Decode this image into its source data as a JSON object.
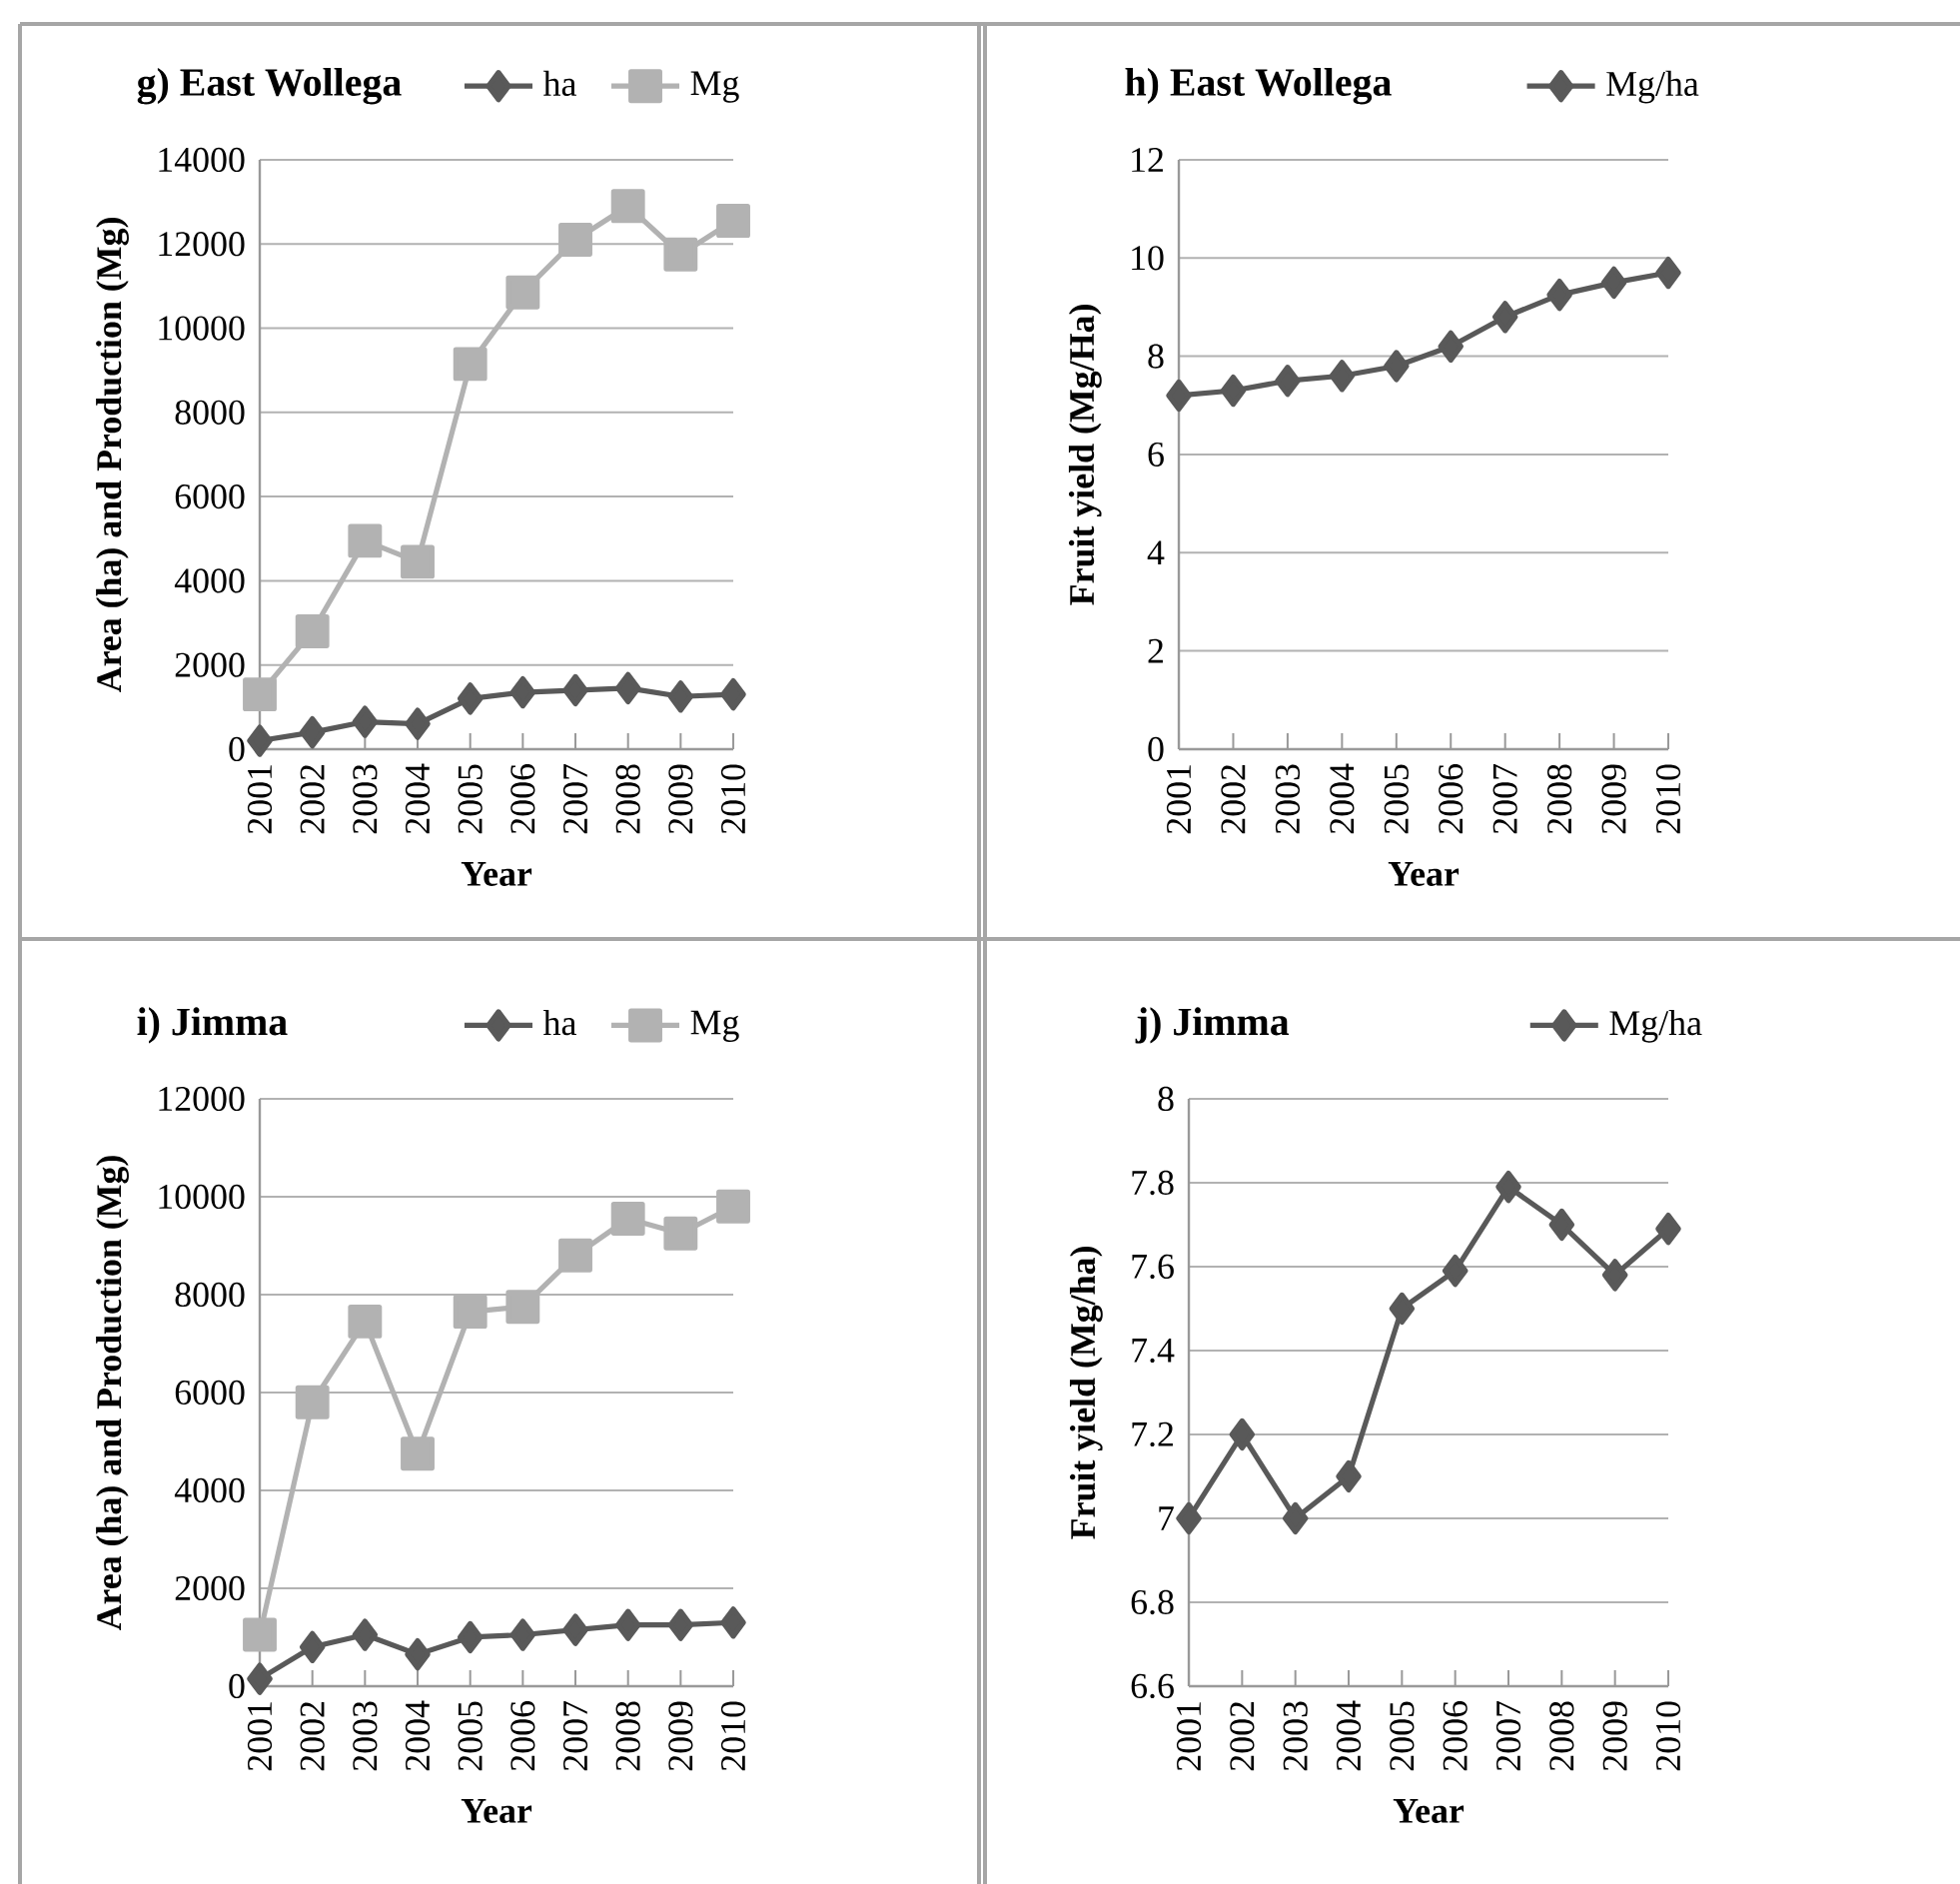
{
  "chart_data": [
    {
      "type": "line",
      "title": "g) East Wollega",
      "xlabel": "Year",
      "ylabel": "Area (ha) and Production (Mg)",
      "categories": [
        "2001",
        "2002",
        "2003",
        "2004",
        "2005",
        "2006",
        "2007",
        "2008",
        "2009",
        "2010"
      ],
      "ylim": [
        0,
        14000
      ],
      "yticks": [
        0,
        2000,
        4000,
        6000,
        8000,
        10000,
        12000,
        14000
      ],
      "grid": "y",
      "legend": "top",
      "series": [
        {
          "name": "ha",
          "color": "#595959",
          "marker": "diamond",
          "values": [
            200,
            400,
            650,
            600,
            1200,
            1350,
            1400,
            1450,
            1250,
            1300
          ]
        },
        {
          "name": "Mg",
          "color": "#b2b2b2",
          "marker": "square",
          "values": [
            1300,
            2800,
            4950,
            4450,
            9150,
            10850,
            12100,
            12900,
            11750,
            12550
          ]
        }
      ]
    },
    {
      "type": "line",
      "title": "h) East Wollega",
      "xlabel": "Year",
      "ylabel": "Fruit yield (Mg/Ha)",
      "categories": [
        "2001",
        "2002",
        "2003",
        "2004",
        "2005",
        "2006",
        "2007",
        "2008",
        "2009",
        "2010"
      ],
      "ylim": [
        0,
        12
      ],
      "yticks": [
        0,
        2,
        4,
        6,
        8,
        10,
        12
      ],
      "grid": "y",
      "legend": "top",
      "series": [
        {
          "name": "Mg/ha",
          "color": "#595959",
          "marker": "diamond",
          "values": [
            7.2,
            7.3,
            7.5,
            7.6,
            7.8,
            8.2,
            8.8,
            9.25,
            9.5,
            9.7
          ]
        }
      ]
    },
    {
      "type": "line",
      "title": "i) Jimma",
      "xlabel": "Year",
      "ylabel": "Area (ha) and Production (Mg)",
      "categories": [
        "2001",
        "2002",
        "2003",
        "2004",
        "2005",
        "2006",
        "2007",
        "2008",
        "2009",
        "2010"
      ],
      "ylim": [
        0,
        12000
      ],
      "yticks": [
        0,
        2000,
        4000,
        6000,
        8000,
        10000,
        12000
      ],
      "grid": "y",
      "legend": "top",
      "series": [
        {
          "name": "ha",
          "color": "#595959",
          "marker": "diamond",
          "values": [
            150,
            800,
            1050,
            650,
            1000,
            1050,
            1150,
            1250,
            1250,
            1300
          ]
        },
        {
          "name": "Mg",
          "color": "#b2b2b2",
          "marker": "square",
          "values": [
            1050,
            5800,
            7450,
            4750,
            7650,
            7750,
            8800,
            9550,
            9250,
            9800
          ]
        }
      ]
    },
    {
      "type": "line",
      "title": "j) Jimma",
      "xlabel": "Year",
      "ylabel": "Fruit yield (Mg/ha)",
      "categories": [
        "2001",
        "2002",
        "2003",
        "2004",
        "2005",
        "2006",
        "2007",
        "2008",
        "2009",
        "2010"
      ],
      "ylim": [
        6.6,
        8
      ],
      "yticks": [
        6.6,
        6.8,
        7,
        7.2,
        7.4,
        7.6,
        7.8,
        8
      ],
      "grid": "y",
      "legend": "top",
      "series": [
        {
          "name": "Mg/ha",
          "color": "#595959",
          "marker": "diamond",
          "values": [
            7.0,
            7.2,
            7.0,
            7.1,
            7.5,
            7.59,
            7.79,
            7.7,
            7.58,
            7.69
          ]
        }
      ]
    }
  ]
}
